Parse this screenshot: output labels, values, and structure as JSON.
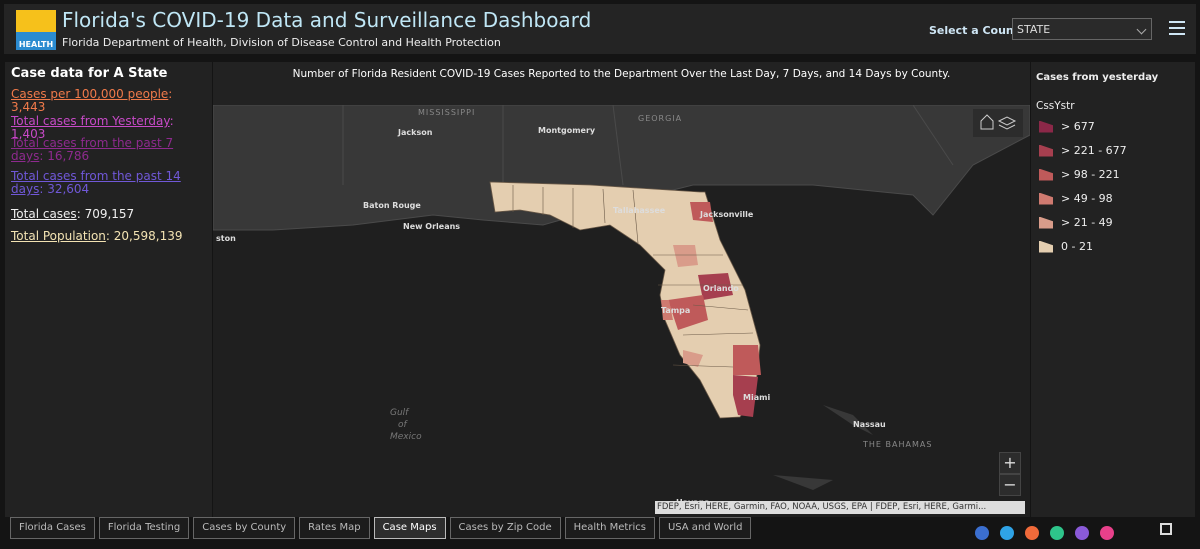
{
  "header": {
    "logo_text": "HEALTH",
    "title": "Florida's COVID-19 Data and Surveillance Dashboard",
    "subtitle": "Florida Department of Health, Division of Disease Control and Health Protection",
    "select_label": "Select a County",
    "select_value": "STATE"
  },
  "summary": {
    "heading": "Case data for A State",
    "separator": ":",
    "stats": [
      {
        "label": "Cases per 100,000 people",
        "value": "3,443",
        "color": "#f07a4a"
      },
      {
        "label": "Total cases from Yesterday",
        "value": "1,403",
        "color": "#c84ac8"
      },
      {
        "label": "Total cases from the past 7 days",
        "value": "16,786",
        "color": "#8e2a8e"
      },
      {
        "label": "Total cases from the past 14 days",
        "value": "32,604",
        "color": "#7058d8"
      },
      {
        "label": "Total cases",
        "value": "709,157",
        "color": "#f0f0f0"
      },
      {
        "label": "Total Population",
        "value": "20,598,139",
        "color": "#f3e3b3"
      }
    ]
  },
  "map": {
    "title": "Number of Florida Resident COVID-19 Cases Reported to the Department Over the Last Day, 7 Days, and 14 Days by County.",
    "labels": [
      {
        "text": "MISSISSIPPI",
        "kind": "region"
      },
      {
        "text": "Jackson",
        "kind": "city"
      },
      {
        "text": "Montgomery",
        "kind": "city"
      },
      {
        "text": "GEORGIA",
        "kind": "region"
      },
      {
        "text": "Baton Rouge",
        "kind": "city"
      },
      {
        "text": "New Orleans",
        "kind": "city"
      },
      {
        "text": "ston",
        "kind": "city"
      },
      {
        "text": "Jacksonville",
        "kind": "city"
      },
      {
        "text": "Tallahassee",
        "kind": "city"
      },
      {
        "text": "Tampa",
        "kind": "city"
      },
      {
        "text": "Orlando",
        "kind": "city"
      },
      {
        "text": "Miami",
        "kind": "city"
      },
      {
        "text": "Gulf of Mexico",
        "kind": "water"
      },
      {
        "text": "Nassau",
        "kind": "city"
      },
      {
        "text": "THE BAHAMAS",
        "kind": "region"
      },
      {
        "text": "Havana",
        "kind": "city"
      }
    ],
    "zoom_in": "+",
    "zoom_out": "−",
    "attribution": "FDEP, Esri, HERE, Garmin, FAO, NOAA, USGS, EPA | FDEP, Esri, HERE, Garmi..."
  },
  "legend": {
    "title": "Cases from yesterday",
    "field": "CssYstr",
    "items": [
      {
        "label": "> 677",
        "color": "#8b2848"
      },
      {
        "label": "> 221 - 677",
        "color": "#a63f4f"
      },
      {
        "label": "> 98 - 221",
        "color": "#bf5a5a"
      },
      {
        "label": "> 49 - 98",
        "color": "#cf7a70"
      },
      {
        "label": "> 21 - 49",
        "color": "#d99c8a"
      },
      {
        "label": "0 - 21",
        "color": "#e4ceb0"
      }
    ]
  },
  "tabs": {
    "items": [
      "Florida Cases",
      "Florida Testing",
      "Cases by County",
      "Rates Map",
      "Case Maps",
      "Cases by Zip Code",
      "Health Metrics",
      "USA and World"
    ],
    "active": "Case Maps"
  }
}
